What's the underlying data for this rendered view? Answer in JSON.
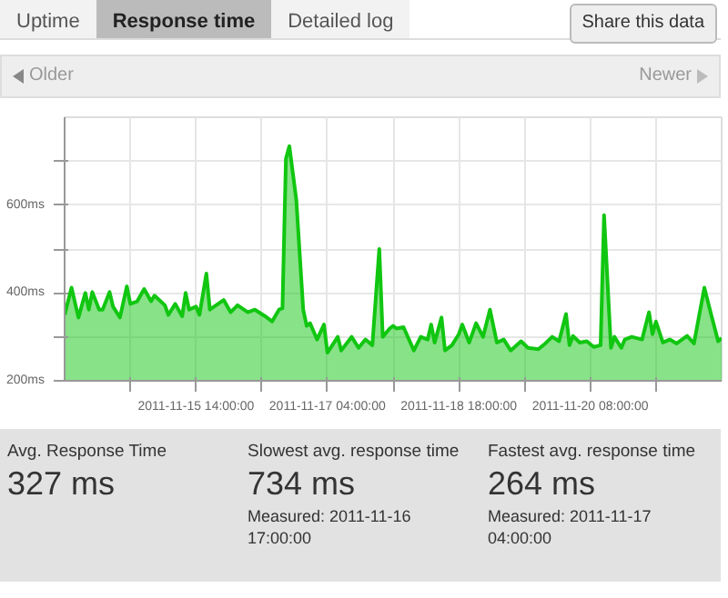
{
  "chart_data": {
    "type": "area",
    "title": "Response time",
    "annotations": [
      "Uptime",
      "Detailed log",
      "Share this data",
      "Older",
      "Newer",
      "Avg. Response Time",
      "327 ms",
      "Slowest avg. response time",
      "734 ms",
      "Measured: 2011-11-16 17:00:00",
      "Fastest avg. response time",
      "264 ms",
      "Measured: 2011-11-17 04:00:00"
    ],
    "xlim": [
      "2011-11-14T00:00",
      "2011-11-21T22:00"
    ],
    "xticks": [
      {
        "value": "2011-11-14T19:00",
        "label": null
      },
      {
        "value": "2011-11-15T14:00",
        "label": "2011-11-15 14:00:00"
      },
      {
        "value": "2011-11-16T09:00",
        "label": null
      },
      {
        "value": "2011-11-17T04:00",
        "label": "2011-11-17 04:00:00"
      },
      {
        "value": "2011-11-17T23:00",
        "label": null
      },
      {
        "value": "2011-11-18T18:00",
        "label": "2011-11-18 18:00:00"
      },
      {
        "value": "2011-11-19T13:00",
        "label": null
      },
      {
        "value": "2011-11-20T08:00",
        "label": "2011-11-20 08:00:00"
      },
      {
        "value": "2011-11-21T03:00",
        "label": null
      }
    ],
    "ylim": [
      200,
      800
    ],
    "yticks": [
      {
        "value": 200,
        "label": "200ms"
      },
      {
        "value": 300,
        "label": null
      },
      {
        "value": 400,
        "label": "400ms"
      },
      {
        "value": 500,
        "label": null
      },
      {
        "value": 600,
        "label": "600ms"
      },
      {
        "value": 700,
        "label": null
      }
    ],
    "grid": true,
    "series": [
      {
        "color": "#11c611",
        "x": [
          "2011-11-14T00:00",
          "2011-11-14T02:00",
          "2011-11-14T04:00",
          "2011-11-14T06:00",
          "2011-11-14T07:00",
          "2011-11-14T08:00",
          "2011-11-14T10:00",
          "2011-11-14T11:00",
          "2011-11-14T13:00",
          "2011-11-14T14:00",
          "2011-11-14T16:00",
          "2011-11-14T18:00",
          "2011-11-14T19:00",
          "2011-11-14T21:00",
          "2011-11-14T23:00",
          "2011-11-15T01:00",
          "2011-11-15T02:00",
          "2011-11-15T05:00",
          "2011-11-15T06:00",
          "2011-11-15T08:00",
          "2011-11-15T10:00",
          "2011-11-15T11:00",
          "2011-11-15T12:00",
          "2011-11-15T14:00",
          "2011-11-15T15:00",
          "2011-11-15T17:00",
          "2011-11-15T18:00",
          "2011-11-15T22:00",
          "2011-11-16T00:00",
          "2011-11-16T02:00",
          "2011-11-16T05:00",
          "2011-11-16T07:00",
          "2011-11-16T10:00",
          "2011-11-16T12:00",
          "2011-11-16T14:00",
          "2011-11-16T15:00",
          "2011-11-16T16:00",
          "2011-11-16T17:00",
          "2011-11-16T19:00",
          "2011-11-16T21:00",
          "2011-11-16T22:00",
          "2011-11-16T23:00",
          "2011-11-17T01:00",
          "2011-11-17T03:00",
          "2011-11-17T04:00",
          "2011-11-17T07:00",
          "2011-11-17T08:00",
          "2011-11-17T11:00",
          "2011-11-17T13:00",
          "2011-11-17T15:00",
          "2011-11-17T17:00",
          "2011-11-17T19:00",
          "2011-11-17T20:00",
          "2011-11-17T22:00",
          "2011-11-17T23:00",
          "2011-11-18T00:00",
          "2011-11-18T02:00",
          "2011-11-18T05:00",
          "2011-11-18T07:00",
          "2011-11-18T09:00",
          "2011-11-18T10:00",
          "2011-11-18T11:00",
          "2011-11-18T13:00",
          "2011-11-18T14:00",
          "2011-11-18T16:00",
          "2011-11-18T18:00",
          "2011-11-18T19:00",
          "2011-11-18T21:00",
          "2011-11-18T23:00",
          "2011-11-19T01:00",
          "2011-11-19T03:00",
          "2011-11-19T05:00",
          "2011-11-19T07:00",
          "2011-11-19T09:00",
          "2011-11-19T12:00",
          "2011-11-19T14:00",
          "2011-11-19T17:00",
          "2011-11-19T19:00",
          "2011-11-19T21:00",
          "2011-11-19T23:00",
          "2011-11-20T01:00",
          "2011-11-20T02:00",
          "2011-11-20T03:00",
          "2011-11-20T05:00",
          "2011-11-20T07:00",
          "2011-11-20T09:00",
          "2011-11-20T11:00",
          "2011-11-20T12:00",
          "2011-11-20T14:00",
          "2011-11-20T15:00",
          "2011-11-20T17:00",
          "2011-11-20T18:00",
          "2011-11-20T20:00",
          "2011-11-20T23:00",
          "2011-11-21T01:00",
          "2011-11-21T02:00",
          "2011-11-21T03:00",
          "2011-11-21T05:00",
          "2011-11-21T07:00",
          "2011-11-21T09:00",
          "2011-11-21T12:00",
          "2011-11-21T14:00",
          "2011-11-21T17:00",
          "2011-11-21T19:00",
          "2011-11-21T21:00",
          "2011-11-21T22:00"
        ],
        "values": [
          350,
          412,
          344,
          400,
          362,
          402,
          362,
          362,
          402,
          369,
          344,
          415,
          375,
          381,
          409,
          381,
          394,
          372,
          350,
          375,
          347,
          400,
          362,
          369,
          350,
          444,
          362,
          384,
          356,
          372,
          356,
          362,
          347,
          335,
          362,
          365,
          706,
          734,
          612,
          362,
          325,
          331,
          294,
          328,
          264,
          300,
          269,
          300,
          275,
          294,
          281,
          500,
          300,
          319,
          325,
          319,
          322,
          269,
          300,
          294,
          328,
          287,
          344,
          269,
          281,
          306,
          328,
          287,
          331,
          300,
          362,
          287,
          294,
          269,
          290,
          275,
          272,
          285,
          300,
          290,
          352,
          281,
          302,
          287,
          290,
          277,
          281,
          577,
          275,
          300,
          275,
          294,
          300,
          294,
          356,
          306,
          335,
          287,
          294,
          285,
          302,
          285,
          412,
          350,
          290,
          297
        ]
      }
    ]
  }
}
